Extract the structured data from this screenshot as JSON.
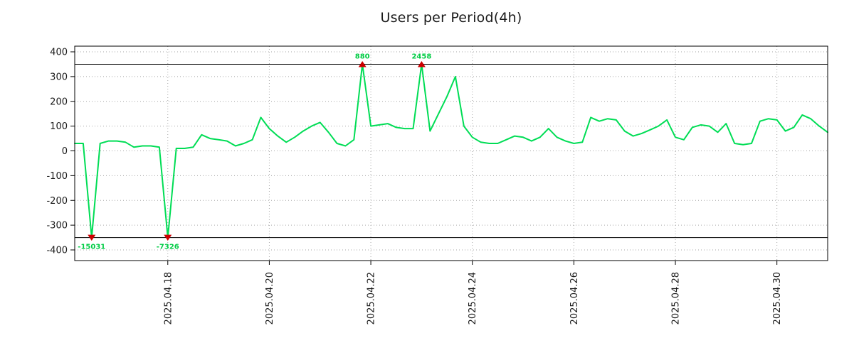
{
  "chart_data": {
    "type": "line",
    "title": "Users per Period(4h)",
    "interval": "4h",
    "series_name": "users",
    "ylim": [
      -400,
      400
    ],
    "y_ticks": [
      400,
      300,
      200,
      100,
      0,
      -100,
      -200,
      -300,
      -400
    ],
    "clip_value": 350,
    "grid": true,
    "x_ticks": [
      {
        "label": "2025.04.18",
        "index": 11
      },
      {
        "label": "2025.04.20",
        "index": 23
      },
      {
        "label": "2025.04.22",
        "index": 35
      },
      {
        "label": "2025.04.24",
        "index": 47
      },
      {
        "label": "2025.04.26",
        "index": 59
      },
      {
        "label": "2025.04.28",
        "index": 71
      },
      {
        "label": "2025.04.30",
        "index": 83
      }
    ],
    "values": [
      30,
      30,
      -15031,
      30,
      40,
      40,
      35,
      15,
      20,
      20,
      15,
      -7326,
      10,
      10,
      15,
      65,
      50,
      45,
      40,
      20,
      30,
      45,
      135,
      90,
      60,
      35,
      55,
      80,
      100,
      115,
      75,
      30,
      20,
      45,
      880,
      100,
      105,
      110,
      95,
      90,
      90,
      2458,
      80,
      150,
      220,
      300,
      100,
      55,
      35,
      30,
      30,
      45,
      60,
      55,
      40,
      55,
      90,
      55,
      40,
      30,
      35,
      135,
      120,
      130,
      125,
      80,
      60,
      70,
      85,
      100,
      125,
      55,
      45,
      95,
      105,
      100,
      75,
      110,
      30,
      25,
      30,
      120,
      130,
      125,
      80,
      95,
      145,
      130,
      100,
      75
    ],
    "annotations": [
      {
        "index": 2,
        "value": -15031,
        "label": "-15031",
        "direction": "down"
      },
      {
        "index": 11,
        "value": -7326,
        "label": "-7326",
        "direction": "down"
      },
      {
        "index": 34,
        "value": 880,
        "label": "880",
        "direction": "up"
      },
      {
        "index": 41,
        "value": 2458,
        "label": "2458",
        "direction": "up"
      }
    ],
    "colors": {
      "line": "#00dd55",
      "marker": "#cc0000",
      "annotation": "#00cc44",
      "grid": "#a6a6a6",
      "axis": "#000000",
      "background": "#ffffff",
      "tick_text": "#1a1a1a"
    }
  }
}
